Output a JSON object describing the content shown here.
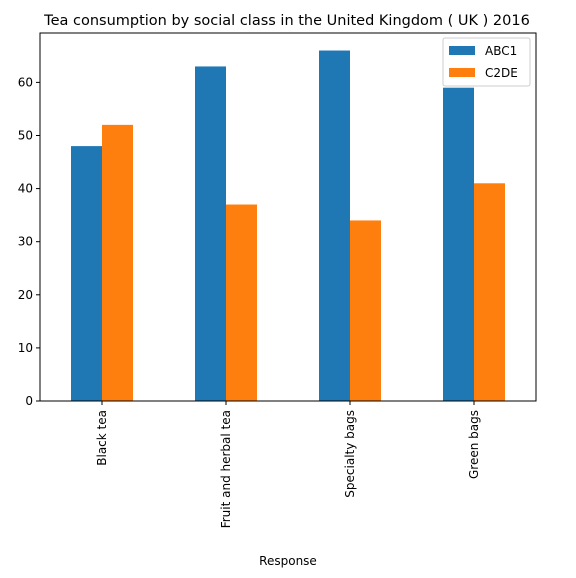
{
  "chart_data": {
    "type": "bar",
    "title": "Tea consumption by social class in the United Kingdom ( UK ) 2016",
    "xlabel": "Response",
    "ylabel": "",
    "categories": [
      "Black tea",
      "Fruit and herbal tea",
      "Specialty bags",
      "Green bags"
    ],
    "series": [
      {
        "name": "ABC1",
        "values": [
          48,
          63,
          66,
          59
        ],
        "color": "#1f77b4"
      },
      {
        "name": "C2DE",
        "values": [
          52,
          37,
          34,
          41
        ],
        "color": "#ff7f0e"
      }
    ],
    "ylim": [
      0,
      69.3
    ],
    "yticks": [
      0,
      10,
      20,
      30,
      40,
      50,
      60
    ],
    "legend": "top-right",
    "grid": false
  }
}
